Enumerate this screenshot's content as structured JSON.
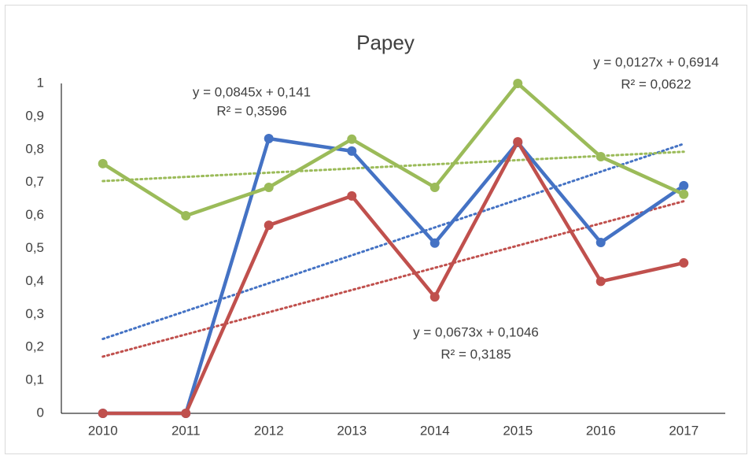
{
  "chart_data": {
    "type": "line",
    "title": "Papey",
    "categories": [
      "2010",
      "2011",
      "2012",
      "2013",
      "2014",
      "2015",
      "2016",
      "2017"
    ],
    "series": [
      {
        "color": "#4472c4",
        "values": [
          0,
          0,
          0.833,
          0.795,
          0.516,
          0.821,
          0.518,
          0.69
        ],
        "trendline": {
          "slope": 0.0845,
          "intercept": 0.141,
          "equation": "y = 0,0845x + 0,141",
          "r2": "R² = 0,3596"
        }
      },
      {
        "color": "#c0504d",
        "values": [
          0,
          0,
          0.57,
          0.659,
          0.353,
          0.823,
          0.4,
          0.456
        ],
        "trendline": {
          "slope": 0.0673,
          "intercept": 0.1046,
          "equation": "y = 0,0673x + 0,1046",
          "r2": "R² = 0,3185"
        }
      },
      {
        "color": "#9bbb59",
        "values": [
          0.757,
          0.599,
          0.685,
          0.831,
          0.685,
          1,
          0.778,
          0.664
        ],
        "trendline": {
          "slope": 0.0127,
          "intercept": 0.6914,
          "equation": "y = 0,0127x + 0,6914",
          "r2": "R² = 0,0622"
        }
      }
    ],
    "ylim": [
      0,
      1
    ],
    "yticks": [
      0,
      {
        "value": 0.1,
        "label": "0,1"
      },
      {
        "value": 0.2,
        "label": "0,2"
      },
      {
        "value": 0.3,
        "label": "0,3"
      },
      {
        "value": 0.4,
        "label": "0,4"
      },
      {
        "value": 0.5,
        "label": "0,5"
      },
      {
        "value": 0.6,
        "label": "0,6"
      },
      {
        "value": 0.7,
        "label": "0,7"
      },
      {
        "value": 0.8,
        "label": "0,8"
      },
      {
        "value": 0.9,
        "label": "0,9"
      },
      1
    ],
    "grid": false
  }
}
